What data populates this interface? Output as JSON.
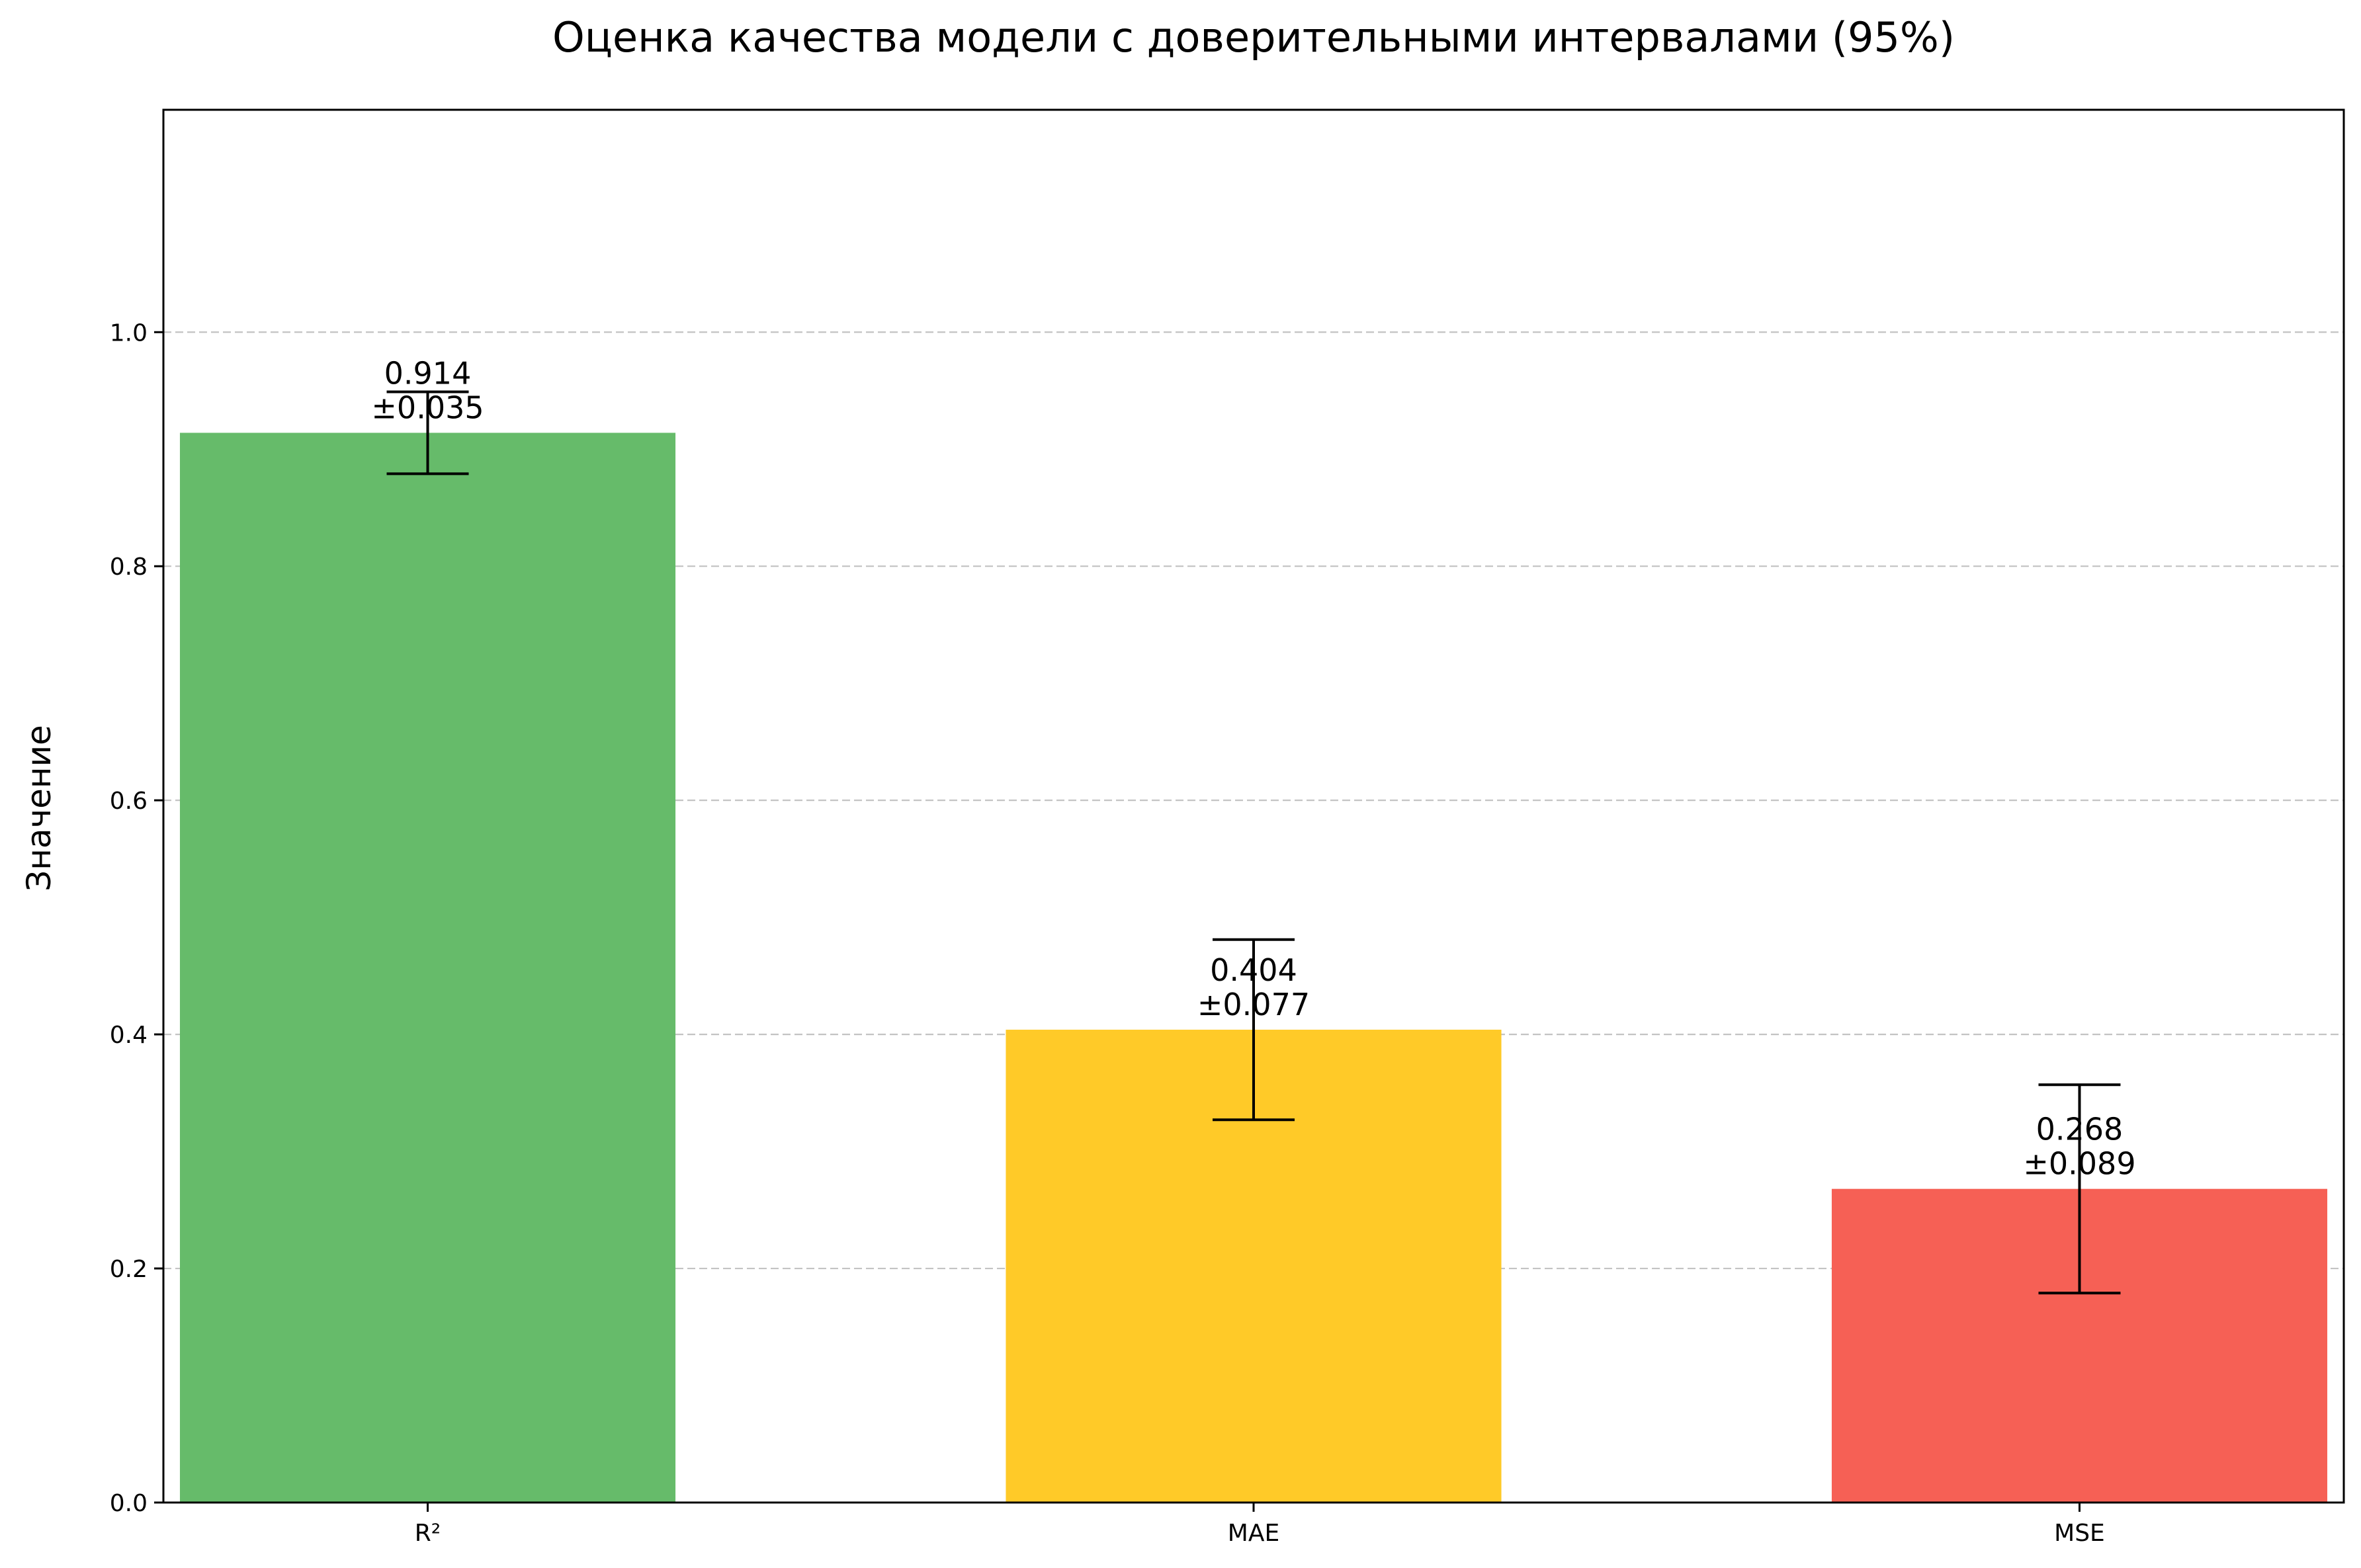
{
  "chart_data": {
    "type": "bar",
    "title": "Оценка качества модели с доверительными интервалами (95%)",
    "xlabel": "",
    "ylabel": "Значение",
    "categories": [
      "R²",
      "MAE",
      "MSE"
    ],
    "values": [
      0.914,
      0.404,
      0.268
    ],
    "errors": [
      0.035,
      0.077,
      0.089
    ],
    "value_labels": [
      "0.914",
      "0.404",
      "0.268"
    ],
    "error_labels": [
      "±0.035",
      "±0.077",
      "±0.089"
    ],
    "colors": [
      "#66bb6a",
      "#ffca28",
      "#f66055"
    ],
    "ylim": [
      0,
      1.19
    ],
    "yticks": [
      0.0,
      0.2,
      0.4,
      0.6,
      0.8,
      1.0
    ],
    "ytick_labels": [
      "0.0",
      "0.2",
      "0.4",
      "0.6",
      "0.8",
      "1.0"
    ],
    "grid": "y-dashed",
    "legend": "none"
  }
}
